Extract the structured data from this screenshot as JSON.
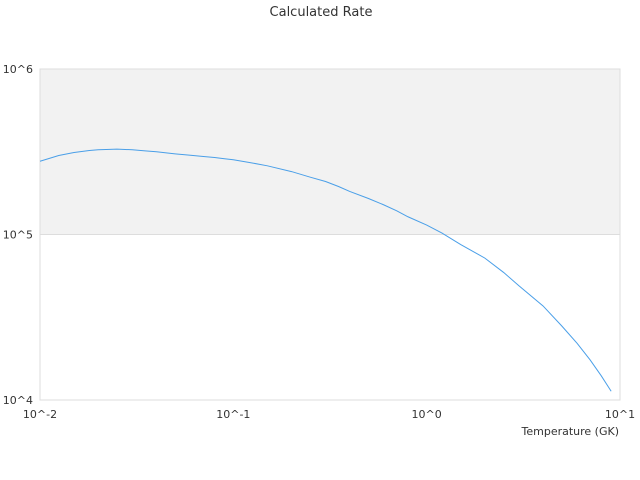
{
  "chart_data": {
    "type": "line",
    "title": "Calculated Rate",
    "xlabel": "Temperature (GK)",
    "ylabel": "",
    "x_scale": "log",
    "y_scale": "log",
    "xlim": [
      0.01,
      10
    ],
    "ylim": [
      10000,
      1000000
    ],
    "x_ticks": [
      {
        "value": 0.01,
        "label": "10^-2"
      },
      {
        "value": 0.1,
        "label": "10^-1"
      },
      {
        "value": 1,
        "label": "10^0"
      },
      {
        "value": 10,
        "label": "10^1"
      }
    ],
    "y_ticks": [
      {
        "value": 10000,
        "label": "10^4"
      },
      {
        "value": 100000,
        "label": "10^5"
      },
      {
        "value": 1000000,
        "label": "10^6"
      }
    ],
    "highlight_band": {
      "from": 100000,
      "to": 1000000,
      "color": "#f2f2f2"
    },
    "grid": false,
    "legend": "none",
    "series": [
      {
        "color": "#4a9fe8",
        "x": [
          0.01,
          0.0125,
          0.015,
          0.018,
          0.02,
          0.023,
          0.025,
          0.03,
          0.035,
          0.04,
          0.05,
          0.06,
          0.07,
          0.08,
          0.09,
          0.1,
          0.12,
          0.15,
          0.2,
          0.25,
          0.3,
          0.35,
          0.4,
          0.5,
          0.6,
          0.7,
          0.8,
          1.0,
          1.2,
          1.5,
          2.0,
          2.5,
          3.0,
          4.0,
          5.0,
          6.0,
          7.0,
          8.0,
          9.0
        ],
        "y": [
          277000,
          300000,
          313000,
          322000,
          325000,
          327000,
          328000,
          325000,
          320000,
          316000,
          307000,
          301000,
          296000,
          292000,
          287000,
          283000,
          273000,
          260000,
          240000,
          222000,
          209000,
          195000,
          182000,
          165000,
          151000,
          139000,
          128000,
          114000,
          102000,
          87000,
          72000,
          59000,
          49000,
          37000,
          28000,
          22000,
          17500,
          14000,
          11300
        ]
      }
    ]
  }
}
